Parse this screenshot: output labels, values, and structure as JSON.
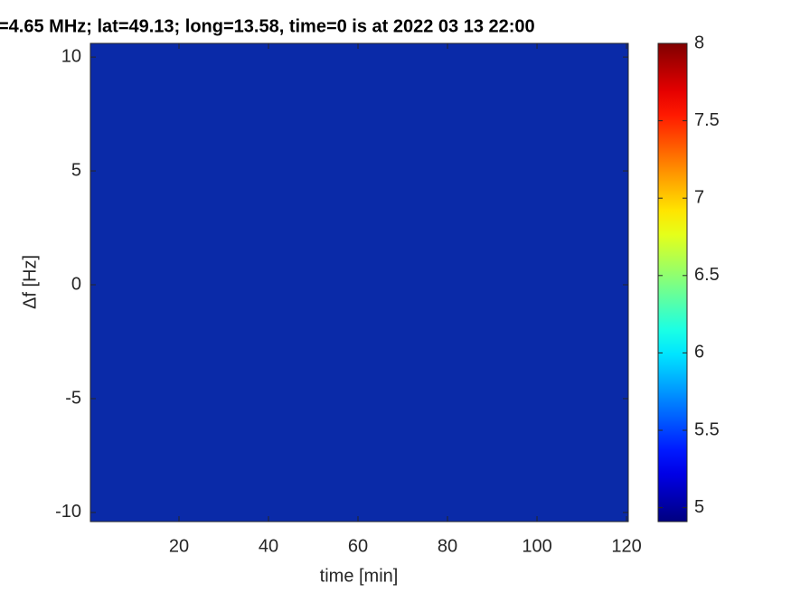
{
  "chart_data": {
    "type": "heatmap",
    "title": "=4.65 MHz;  lat=49.13; long=13.58, time=0 is at 2022 03 13 22:00",
    "xlabel": "time [min]",
    "ylabel": "Δf [Hz]",
    "xlim": [
      0.2,
      120.4
    ],
    "xticks": [
      20,
      40,
      60,
      80,
      100,
      120
    ],
    "ylim": [
      -10.4,
      10.6
    ],
    "yticks": [
      -10,
      -5,
      0,
      5,
      10
    ],
    "colormap": "jet",
    "clim": [
      4.91,
      8
    ],
    "cticks": [
      5,
      5.5,
      6,
      6.5,
      7,
      7.5,
      8
    ]
  }
}
